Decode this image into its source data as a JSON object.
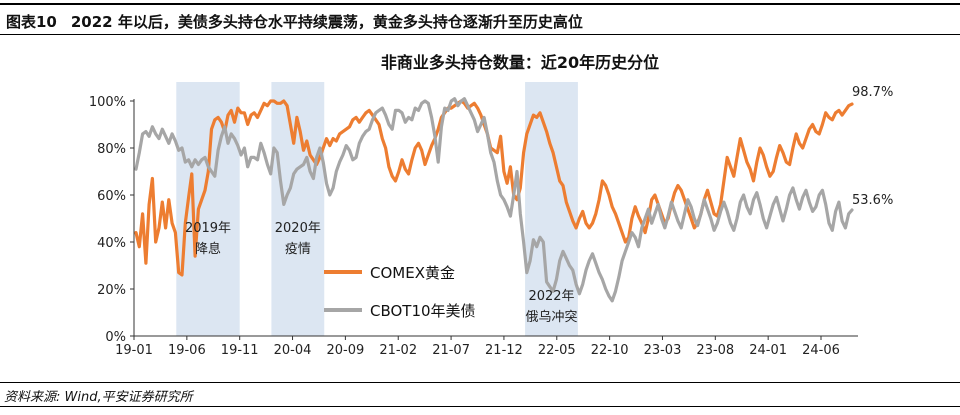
{
  "figure": {
    "number": "图表10",
    "title": "2022 年以后，美债多头持仓水平持续震荡，黄金多头持仓逐渐升至历史高位"
  },
  "source": "资料来源: Wind,平安证券研究所",
  "chart_data": {
    "type": "line",
    "title": "非商业多头持仓数量：近20年历史分位",
    "x_ticks": [
      "19-01",
      "19-06",
      "19-11",
      "20-04",
      "20-09",
      "21-02",
      "21-07",
      "21-12",
      "22-05",
      "22-10",
      "23-03",
      "23-08",
      "24-01",
      "24-06"
    ],
    "y_ticks": [
      "0%",
      "20%",
      "40%",
      "60%",
      "80%",
      "100%"
    ],
    "ylim": [
      0,
      100
    ],
    "grid": false,
    "legend_position": "bottom-center",
    "series": [
      {
        "name": "COMEX黄金",
        "color": "#ED7D31",
        "values": [
          44,
          38,
          52,
          31,
          56,
          67,
          40,
          46,
          57,
          46,
          58,
          48,
          44,
          27,
          26,
          48,
          59,
          69,
          34,
          54,
          58,
          62,
          70,
          88,
          92,
          93,
          91,
          87,
          94,
          96,
          91,
          97,
          95,
          95,
          90,
          94,
          95,
          93,
          96,
          99,
          98,
          100,
          100,
          99,
          99,
          100,
          98,
          90,
          82,
          93,
          87,
          79,
          83,
          77,
          75,
          73,
          76,
          80,
          84,
          81,
          84,
          83,
          86,
          87,
          88,
          89,
          92,
          93,
          91,
          93,
          95,
          96,
          94,
          92,
          90,
          84,
          80,
          72,
          68,
          66,
          70,
          75,
          71,
          69,
          75,
          80,
          82,
          79,
          73,
          77,
          81,
          84,
          88,
          93,
          95,
          97,
          97,
          98,
          99,
          100,
          99,
          97,
          98,
          99,
          97,
          94,
          90,
          86,
          80,
          79,
          78,
          85,
          70,
          65,
          72,
          60,
          58,
          63,
          78,
          86,
          90,
          94,
          93,
          95,
          91,
          87,
          82,
          78,
          72,
          66,
          64,
          57,
          53,
          49,
          46,
          50,
          53,
          48,
          46,
          48,
          52,
          58,
          66,
          64,
          60,
          55,
          52,
          48,
          44,
          40,
          42,
          50,
          55,
          51,
          48,
          44,
          50,
          58,
          60,
          56,
          52,
          48,
          50,
          56,
          61,
          64,
          62,
          58,
          54,
          50,
          46,
          48,
          52,
          58,
          62,
          57,
          52,
          51,
          56,
          66,
          76,
          72,
          68,
          76,
          84,
          79,
          74,
          71,
          66,
          74,
          80,
          77,
          72,
          68,
          70,
          76,
          81,
          78,
          74,
          73,
          80,
          86,
          82,
          80,
          84,
          88,
          90,
          87,
          86,
          90,
          95,
          93,
          92,
          95,
          96,
          94,
          96,
          98,
          98.7
        ]
      },
      {
        "name": "CBOT10年美债",
        "color": "#A6A6A6",
        "values": [
          71,
          78,
          86,
          87,
          85,
          89,
          86,
          84,
          88,
          85,
          82,
          86,
          83,
          79,
          80,
          74,
          75,
          72,
          75,
          73,
          75,
          76,
          72,
          70,
          68,
          79,
          85,
          89,
          82,
          86,
          84,
          81,
          77,
          80,
          72,
          76,
          76,
          75,
          82,
          78,
          73,
          69,
          80,
          78,
          66,
          56,
          60,
          63,
          69,
          71,
          72,
          73,
          76,
          70,
          67,
          76,
          80,
          74,
          65,
          60,
          63,
          70,
          74,
          77,
          81,
          79,
          75,
          76,
          82,
          85,
          87,
          88,
          92,
          95,
          96,
          97,
          94,
          90,
          88,
          96,
          96,
          95,
          91,
          93,
          92,
          97,
          96,
          99,
          100,
          99,
          93,
          85,
          74,
          89,
          97,
          96,
          100,
          101,
          98,
          100,
          101,
          98,
          95,
          92,
          87,
          90,
          93,
          86,
          78,
          74,
          66,
          60,
          58,
          55,
          51,
          60,
          70,
          52,
          40,
          27,
          32,
          41,
          38,
          42,
          40,
          23,
          21,
          19,
          24,
          32,
          36,
          33,
          30,
          28,
          22,
          18,
          22,
          28,
          32,
          35,
          31,
          27,
          24,
          20,
          17,
          15,
          19,
          25,
          32,
          36,
          40,
          44,
          42,
          38,
          46,
          50,
          54,
          48,
          52,
          56,
          50,
          46,
          51,
          57,
          53,
          49,
          46,
          52,
          58,
          55,
          50,
          47,
          52,
          58,
          54,
          50,
          45,
          48,
          53,
          57,
          53,
          48,
          45,
          50,
          57,
          60,
          55,
          52,
          58,
          61,
          56,
          50,
          46,
          51,
          56,
          59,
          54,
          49,
          54,
          60,
          63,
          58,
          54,
          59,
          62,
          57,
          53,
          55,
          60,
          62,
          56,
          48,
          45,
          53,
          57,
          49,
          46,
          52,
          53.6
        ]
      }
    ],
    "end_labels": [
      "98.7%",
      "53.6%"
    ],
    "shaded_periods": [
      {
        "start": "2019-05",
        "end": "2019-11",
        "label_line1": "2019年",
        "label_line2": "降息"
      },
      {
        "start": "2020-02",
        "end": "2020-07",
        "label_line1": "2020年",
        "label_line2": "疫情"
      },
      {
        "start": "2022-02",
        "end": "2022-07",
        "label_line1": "2022年",
        "label_line2": "俄乌冲突"
      }
    ],
    "shade_color": "#DCE6F2"
  }
}
